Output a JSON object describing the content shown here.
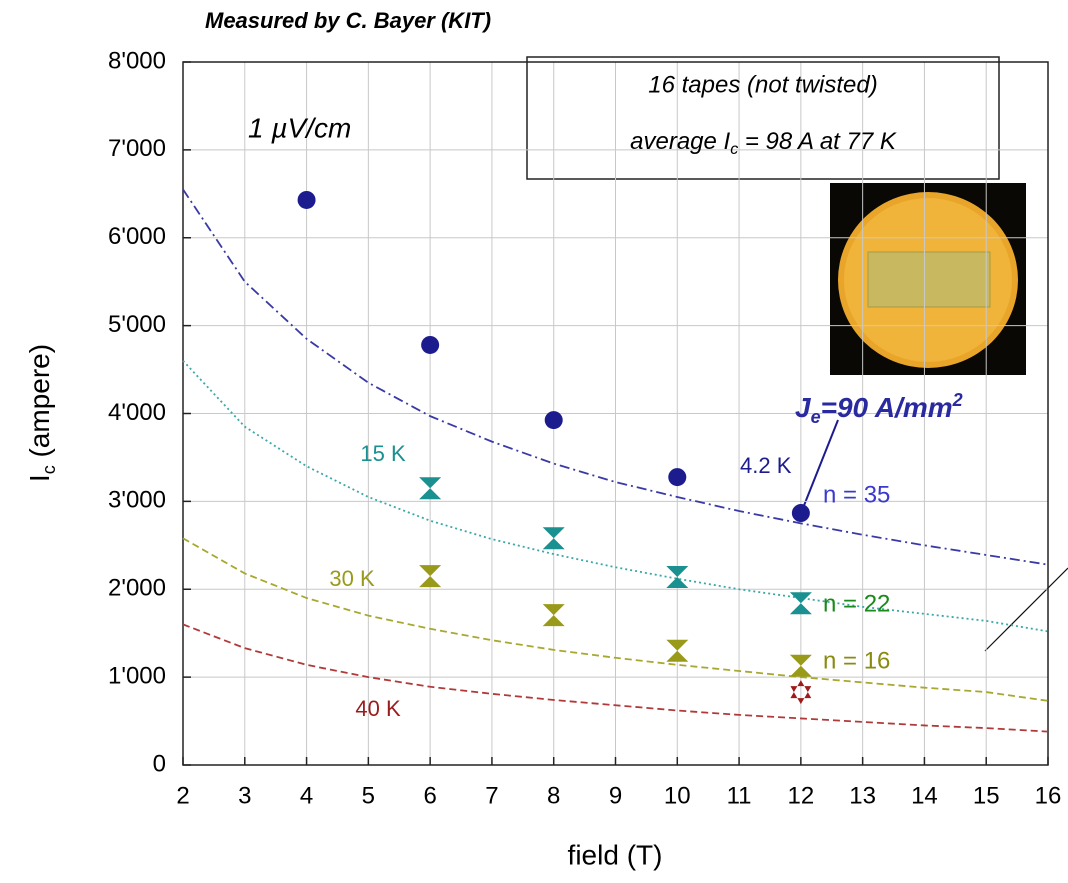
{
  "chart_data": {
    "type": "scatter",
    "title": "Measured by C. Bayer (KIT)",
    "xlabel": "field (T)",
    "ylabel_parts": [
      "I",
      "c",
      " (ampere)"
    ],
    "xlim": [
      2,
      16
    ],
    "ylim": [
      0,
      8000
    ],
    "xticks": [
      2,
      3,
      4,
      5,
      6,
      7,
      8,
      9,
      10,
      11,
      12,
      13,
      14,
      15,
      16
    ],
    "yticks": [
      0,
      {
        "value": 1000,
        "label": "1'000"
      },
      {
        "value": 2000,
        "label": "2'000"
      },
      {
        "value": 3000,
        "label": "3'000"
      },
      {
        "value": 4000,
        "label": "4'000"
      },
      {
        "value": 5000,
        "label": "5'000"
      },
      {
        "value": 6000,
        "label": "6'000"
      },
      {
        "value": 7000,
        "label": "7'000"
      },
      {
        "value": 8000,
        "label": "8'000"
      }
    ],
    "grid": true,
    "fit_x": [
      2,
      3,
      4,
      5,
      6,
      7,
      8,
      9,
      10,
      11,
      12,
      13,
      14,
      15,
      16
    ],
    "series": [
      {
        "name": "4.2 K",
        "color": "#1c1c8e",
        "fit_color": "#3a3aa6",
        "marker": "circle",
        "line_style": "dashdot",
        "x": [
          4,
          6,
          8,
          10,
          12
        ],
        "values": [
          6430,
          4780,
          3925,
          3276,
          2867
        ],
        "fit_values": [
          6550,
          5500,
          4850,
          4350,
          3970,
          3680,
          3430,
          3220,
          3050,
          2890,
          2750,
          2620,
          2500,
          2390,
          2280
        ]
      },
      {
        "name": "15 K",
        "color": "#1a9090",
        "fit_color": "#3aa8a8",
        "marker": "hourglass",
        "line_style": "dotted",
        "x": [
          6,
          8,
          10,
          12
        ],
        "values": [
          3150,
          2580,
          2140,
          1840
        ],
        "fit_values": [
          4600,
          3850,
          3400,
          3050,
          2780,
          2570,
          2400,
          2250,
          2120,
          2000,
          1900,
          1800,
          1720,
          1640,
          1520
        ]
      },
      {
        "name": "30 K",
        "color": "#9a9a1a",
        "fit_color": "#a8a830",
        "marker": "hourglass",
        "line_style": "dashed",
        "x": [
          6,
          8,
          10,
          12
        ],
        "values": [
          2150,
          1705,
          1300,
          1130
        ],
        "fit_values": [
          2580,
          2180,
          1900,
          1700,
          1550,
          1420,
          1310,
          1220,
          1140,
          1070,
          1000,
          940,
          880,
          830,
          730
        ]
      },
      {
        "name": "40 K",
        "color": "#9c1c1c",
        "fit_color": "#b03a3a",
        "marker": "star",
        "line_style": "dashed",
        "x": [
          12
        ],
        "values": [
          830
        ],
        "fit_values": [
          1600,
          1330,
          1140,
          1000,
          890,
          810,
          740,
          680,
          620,
          570,
          530,
          490,
          450,
          420,
          380
        ]
      }
    ],
    "annotations": {
      "criterion": "1 µV/cm",
      "box_line1": "16 tapes (not twisted)",
      "box_line2_parts": [
        "average I",
        "c",
        " = 98 A at 77 K"
      ],
      "je_parts": [
        "J",
        "e",
        "=90 A/mm",
        "2"
      ],
      "n_labels": [
        {
          "text": "n = 35",
          "color": "#3a3acc"
        },
        {
          "text": "n = 22",
          "color": "#1a8a1a"
        },
        {
          "text": "n = 16",
          "color": "#8a8a10"
        }
      ]
    }
  }
}
